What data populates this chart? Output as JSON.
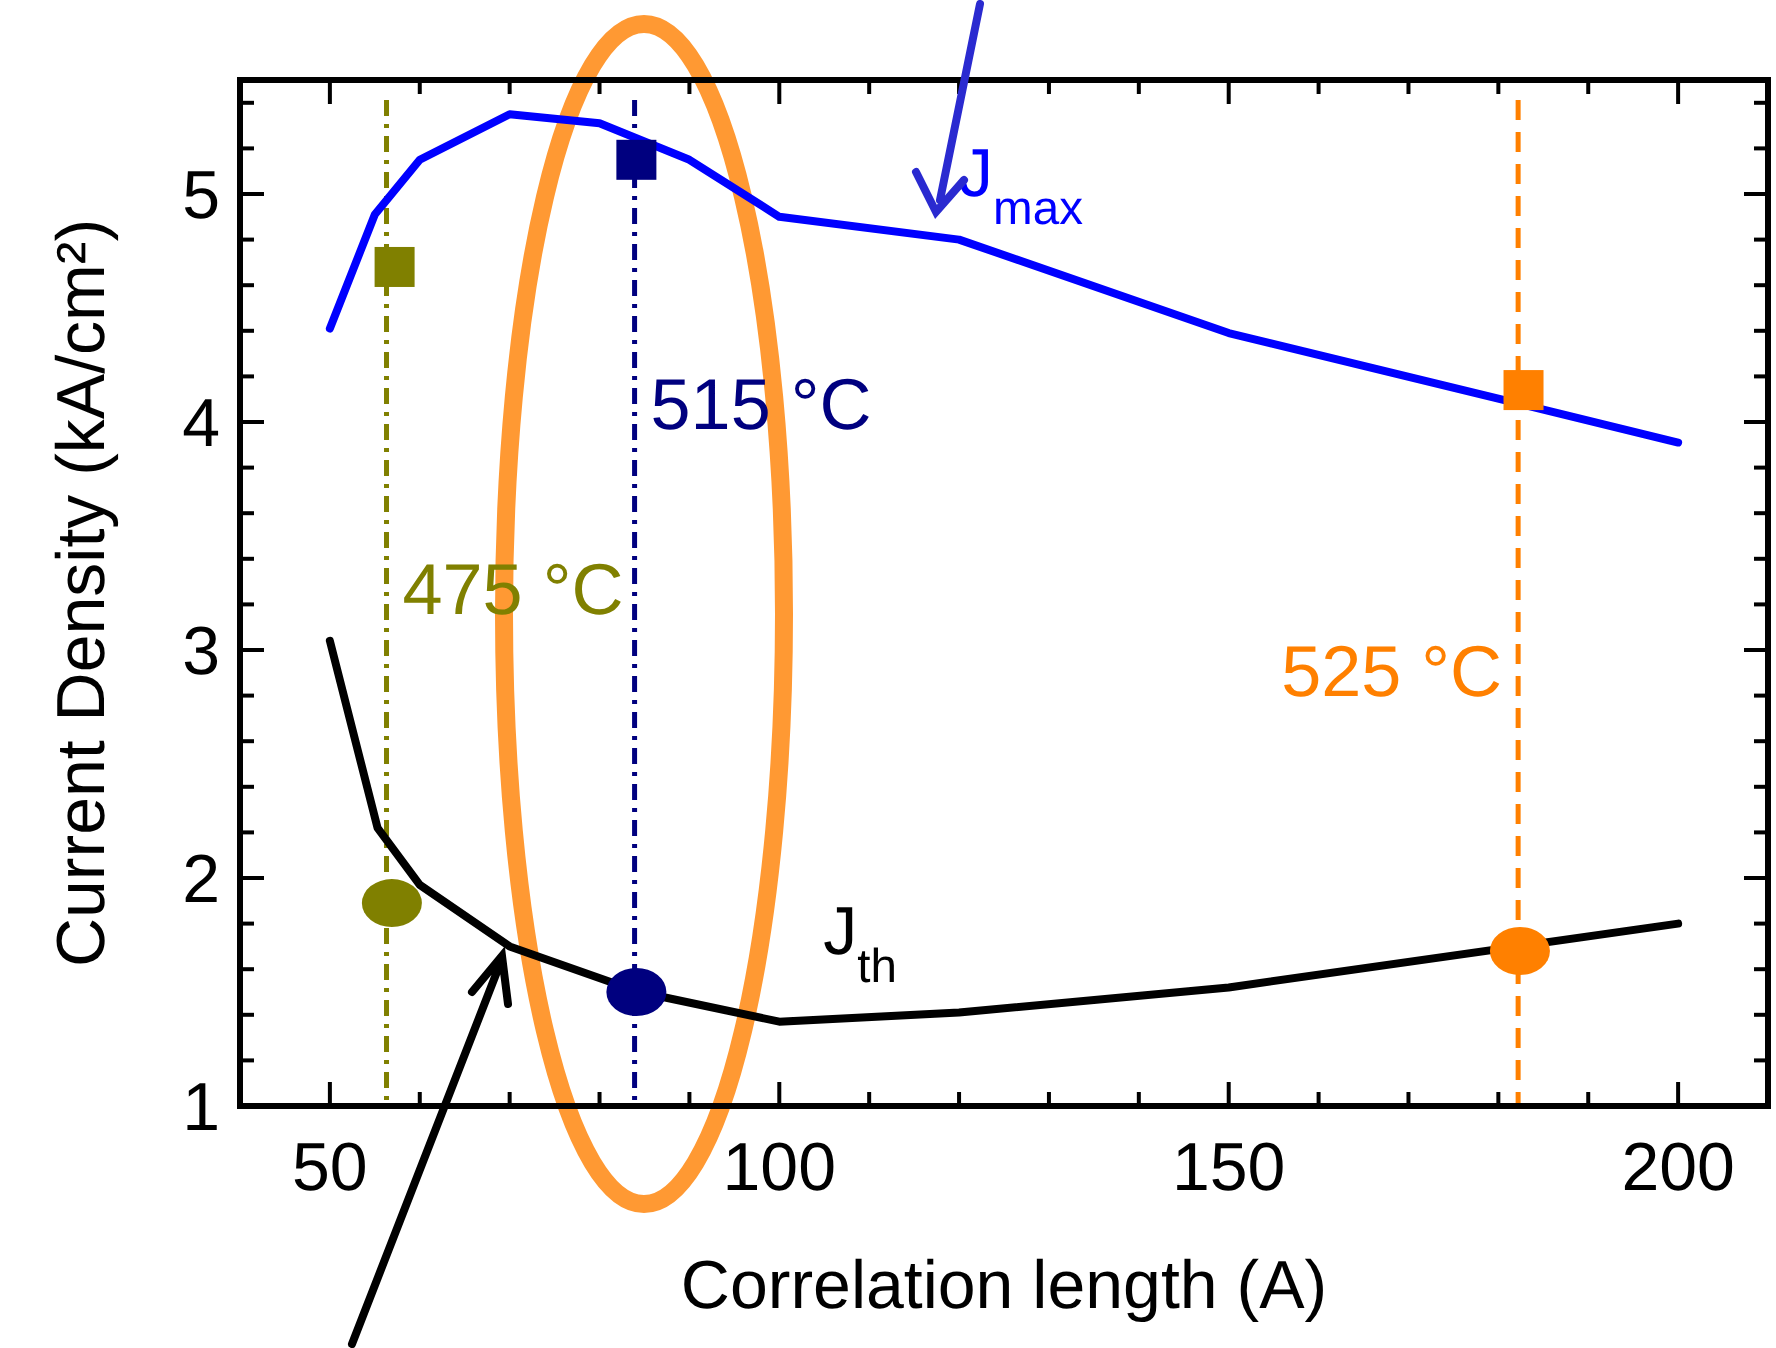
{
  "chart_data": {
    "type": "line",
    "xlabel": "Correlation length (A)",
    "ylabel": "Current Density (kA/cm²)",
    "xlim": [
      40,
      210
    ],
    "ylim": [
      1,
      5.5
    ],
    "xticks": [
      50,
      {
        "value": 60,
        "label": null
      },
      {
        "value": 70,
        "label": null
      },
      {
        "value": 80,
        "label": null
      },
      {
        "value": 90,
        "label": null
      },
      100,
      {
        "value": 110,
        "label": null
      },
      {
        "value": 120,
        "label": null
      },
      {
        "value": 130,
        "label": null
      },
      {
        "value": 140,
        "label": null
      },
      150,
      {
        "value": 160,
        "label": null
      },
      {
        "value": 170,
        "label": null
      },
      {
        "value": 180,
        "label": null
      },
      {
        "value": 190,
        "label": null
      },
      200
    ],
    "yticks": [
      1,
      {
        "value": 1.2,
        "label": null
      },
      {
        "value": 1.4,
        "label": null
      },
      {
        "value": 1.6,
        "label": null
      },
      {
        "value": 1.8,
        "label": null
      },
      2,
      {
        "value": 2.2,
        "label": null
      },
      {
        "value": 2.4,
        "label": null
      },
      {
        "value": 2.6,
        "label": null
      },
      {
        "value": 2.8,
        "label": null
      },
      3,
      {
        "value": 3.2,
        "label": null
      },
      {
        "value": 3.4,
        "label": null
      },
      {
        "value": 3.6,
        "label": null
      },
      {
        "value": 3.8,
        "label": null
      },
      4,
      {
        "value": 4.2,
        "label": null
      },
      {
        "value": 4.4,
        "label": null
      },
      {
        "value": 4.6,
        "label": null
      },
      {
        "value": 4.8,
        "label": null
      },
      5,
      {
        "value": 5.2,
        "label": null
      },
      {
        "value": 5.4,
        "label": null
      }
    ],
    "series": [
      {
        "type": "line",
        "name": "J$_{max}$",
        "color": "#0000ff",
        "x": [
          50,
          55,
          60,
          70,
          80,
          90,
          100,
          120,
          150,
          200
        ],
        "values": [
          4.41,
          4.91,
          5.15,
          5.35,
          5.31,
          5.15,
          4.9,
          4.8,
          4.39,
          3.91
        ]
      },
      {
        "type": "line",
        "name": "J$_{th}$",
        "color": "#000000",
        "x": [
          50,
          55.3,
          60,
          70,
          84.4,
          100,
          120,
          150,
          200
        ],
        "values": [
          3.04,
          2.22,
          1.97,
          1.7,
          1.5,
          1.37,
          1.41,
          1.52,
          1.8
        ]
      },
      {
        "type": "scatter",
        "marker": "square",
        "colors": [
          "#808000",
          "#00007f",
          "#ff8000"
        ],
        "x": [
          57.2,
          84.1,
          182.8
        ],
        "values": [
          4.68,
          5.15,
          4.14
        ]
      },
      {
        "type": "scatter",
        "marker": "circle",
        "colors": [
          "#808000",
          "#00007f",
          "#ff8000"
        ],
        "x": [
          56.9,
          84.1,
          182.4
        ],
        "values": [
          1.89,
          1.5,
          1.68
        ]
      }
    ],
    "ref_lines": [
      {
        "axis": "x",
        "value": 56.3,
        "label": "475 °C",
        "color": "#808000",
        "line_style": "dashdot"
      },
      {
        "axis": "x",
        "value": 83.9,
        "label": "515 °C",
        "color": "#00007f",
        "line_style": "dashdot"
      },
      {
        "axis": "x",
        "value": 182.2,
        "label": "525 °C",
        "color": "#ff8000",
        "line_style": "dashed"
      }
    ]
  }
}
